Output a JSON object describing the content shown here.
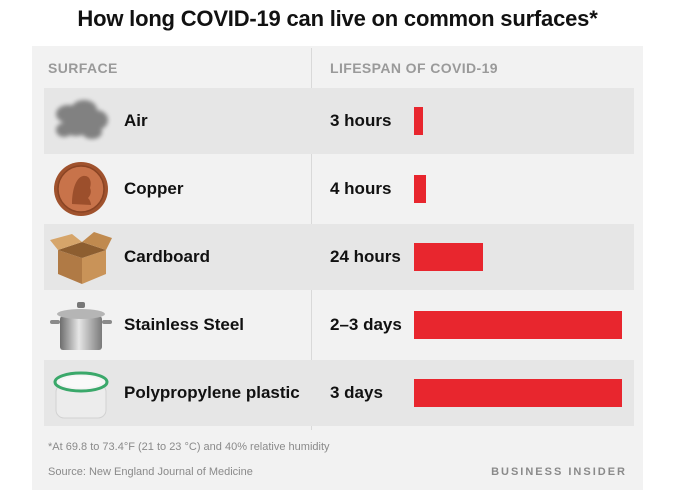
{
  "title": "How long COVID-19 can live on common surfaces*",
  "headers": {
    "surface": "SURFACE",
    "lifespan": "LIFESPAN OF COVID-19"
  },
  "footnote": "*At 69.8 to 73.4°F (21 to 23 °C) and 40% relative humidity",
  "source": "Source: New England Journal of Medicine",
  "brand": "BUSINESS INSIDER",
  "colors": {
    "bar": "#e8262e",
    "row_dark": "#e6e6e6",
    "panel": "#f2f2f2",
    "header_text": "#9a9a9a"
  },
  "chart_data": {
    "type": "bar",
    "orientation": "horizontal",
    "categories": [
      "Air",
      "Copper",
      "Cardboard",
      "Stainless Steel",
      "Polypropylene plastic"
    ],
    "labels": [
      "3 hours",
      "4 hours",
      "24 hours",
      "2–3 days",
      "3 days"
    ],
    "values": [
      3,
      4,
      24,
      72,
      72
    ],
    "unit": "hours",
    "icons": [
      "smoke-cloud-icon",
      "penny-coin-icon",
      "cardboard-box-icon",
      "steel-pot-icon",
      "plastic-container-icon"
    ],
    "grid": false,
    "legend": "none"
  }
}
